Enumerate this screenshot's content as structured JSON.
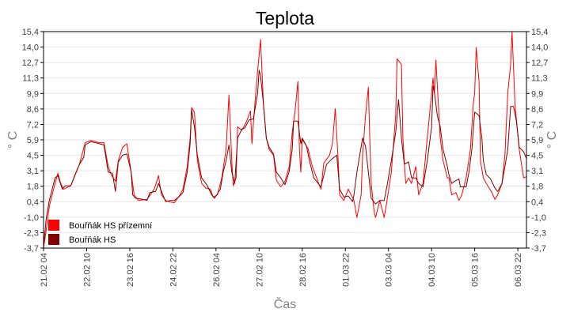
{
  "chart_data": {
    "type": "line",
    "title": "Teplota",
    "xlabel": "Čas",
    "ylabel": "° C",
    "x_unit": "hours since 21.02 04",
    "xlim": [
      0,
      336
    ],
    "ylim": [
      -3.7,
      15.4
    ],
    "yticks": [
      "15,4",
      "14,0",
      "12,7",
      "11,3",
      "9,9",
      "8,6",
      "7,2",
      "5,9",
      "4,5",
      "3,1",
      "1,8",
      "0,4",
      "-1,0",
      "-2,3",
      "-3,7"
    ],
    "xticks": [
      {
        "x": 0,
        "label": "21.02 04"
      },
      {
        "x": 30,
        "label": "22.02 10"
      },
      {
        "x": 60,
        "label": "23.02 16"
      },
      {
        "x": 90,
        "label": "24.02 22"
      },
      {
        "x": 120,
        "label": "26.02 04"
      },
      {
        "x": 150,
        "label": "27.02 10"
      },
      {
        "x": 180,
        "label": "28.02 16"
      },
      {
        "x": 210,
        "label": "01.03 22"
      },
      {
        "x": 240,
        "label": "03.03 04"
      },
      {
        "x": 270,
        "label": "04.03 10"
      },
      {
        "x": 300,
        "label": "05.03 16"
      },
      {
        "x": 330,
        "label": "06.03 22"
      }
    ],
    "grid": true,
    "legend_position": "bottom-left",
    "series": [
      {
        "name": "Bouřňák HS přízemní",
        "color": "#ff0000",
        "points": [
          [
            0,
            -3.7
          ],
          [
            2,
            -2.0
          ],
          [
            4,
            0.0
          ],
          [
            6,
            1.0
          ],
          [
            8,
            2.0
          ],
          [
            10,
            2.9
          ],
          [
            12,
            2.0
          ],
          [
            14,
            1.5
          ],
          [
            19,
            1.8
          ],
          [
            25,
            3.7
          ],
          [
            29,
            5.6
          ],
          [
            33,
            5.8
          ],
          [
            39,
            5.6
          ],
          [
            42,
            5.6
          ],
          [
            45,
            3.5
          ],
          [
            47,
            2.8
          ],
          [
            50,
            2.2
          ],
          [
            52,
            4.0
          ],
          [
            55,
            5.2
          ],
          [
            58,
            5.5
          ],
          [
            61,
            3.0
          ],
          [
            63,
            1.0
          ],
          [
            66,
            0.5
          ],
          [
            72,
            0.6
          ],
          [
            77,
            1.5
          ],
          [
            80,
            2.7
          ],
          [
            82,
            1.0
          ],
          [
            85,
            0.5
          ],
          [
            87,
            0.4
          ],
          [
            91,
            0.3
          ],
          [
            95,
            1.0
          ],
          [
            97,
            1.5
          ],
          [
            100,
            3.5
          ],
          [
            102,
            6.0
          ],
          [
            103,
            8.7
          ],
          [
            105,
            8.3
          ],
          [
            107,
            4.0
          ],
          [
            110,
            2.0
          ],
          [
            113,
            1.6
          ],
          [
            116,
            1.5
          ],
          [
            118,
            0.8
          ],
          [
            121,
            1.0
          ],
          [
            124,
            2.5
          ],
          [
            127,
            5.0
          ],
          [
            129,
            9.8
          ],
          [
            131,
            4.0
          ],
          [
            132,
            1.8
          ],
          [
            134,
            2.5
          ],
          [
            135,
            7.0
          ],
          [
            138,
            6.7
          ],
          [
            141,
            7.4
          ],
          [
            144,
            8.4
          ],
          [
            145,
            5.5
          ],
          [
            147,
            9.0
          ],
          [
            149,
            12.0
          ],
          [
            151,
            14.7
          ],
          [
            153,
            9.0
          ],
          [
            155,
            6.0
          ],
          [
            157,
            5.0
          ],
          [
            160,
            4.5
          ],
          [
            162,
            2.3
          ],
          [
            165,
            1.7
          ],
          [
            168,
            2.2
          ],
          [
            171,
            3.5
          ],
          [
            173,
            6.5
          ],
          [
            175,
            8.4
          ],
          [
            177,
            11.0
          ],
          [
            178,
            5.0
          ],
          [
            179,
            3.0
          ],
          [
            180,
            5.9
          ],
          [
            184,
            5.1
          ],
          [
            187,
            3.5
          ],
          [
            190,
            2.5
          ],
          [
            193,
            1.5
          ],
          [
            195,
            3.8
          ],
          [
            199,
            4.5
          ],
          [
            201,
            5.5
          ],
          [
            203,
            8.6
          ],
          [
            205,
            4.0
          ],
          [
            206,
            1.0
          ],
          [
            209,
            0.5
          ],
          [
            212,
            1.5
          ],
          [
            214,
            1.0
          ],
          [
            216,
            0.5
          ],
          [
            218,
            -1.0
          ],
          [
            221,
            1.0
          ],
          [
            222,
            4.5
          ],
          [
            224,
            8.0
          ],
          [
            226,
            10.5
          ],
          [
            227,
            6.0
          ],
          [
            228,
            2.0
          ],
          [
            230,
            -0.5
          ],
          [
            231,
            -1.0
          ],
          [
            234,
            0.5
          ],
          [
            237,
            -1.0
          ],
          [
            239,
            0.5
          ],
          [
            242,
            3.0
          ],
          [
            245,
            8.0
          ],
          [
            246,
            13.0
          ],
          [
            249,
            12.5
          ],
          [
            250,
            6.0
          ],
          [
            252,
            2.0
          ],
          [
            254,
            2.5
          ],
          [
            256,
            2.0
          ],
          [
            259,
            3.5
          ],
          [
            261,
            1.0
          ],
          [
            264,
            2.0
          ],
          [
            267,
            6.0
          ],
          [
            270,
            10.0
          ],
          [
            271,
            11.3
          ],
          [
            272,
            10.0
          ],
          [
            273,
            12.9
          ],
          [
            276,
            6.0
          ],
          [
            278,
            4.0
          ],
          [
            281,
            2.5
          ],
          [
            282,
            2.5
          ],
          [
            284,
            1.0
          ],
          [
            287,
            1.2
          ],
          [
            289,
            0.5
          ],
          [
            291,
            1.0
          ],
          [
            294,
            2.5
          ],
          [
            297,
            5.0
          ],
          [
            299,
            9.0
          ],
          [
            300,
            10.0
          ],
          [
            301,
            14.0
          ],
          [
            303,
            11.0
          ],
          [
            304,
            4.0
          ],
          [
            306,
            2.5
          ],
          [
            309,
            1.8
          ],
          [
            312,
            1.2
          ],
          [
            314,
            0.6
          ],
          [
            316,
            1.0
          ],
          [
            319,
            2.0
          ],
          [
            321,
            4.5
          ],
          [
            323,
            10.0
          ],
          [
            325,
            12.5
          ],
          [
            326,
            15.4
          ],
          [
            328,
            9.0
          ],
          [
            331,
            5.0
          ],
          [
            333,
            3.3
          ],
          [
            334,
            2.5
          ],
          [
            336,
            2.6
          ]
        ]
      },
      {
        "name": "Bouřňák HS",
        "color": "#800000",
        "points": [
          [
            0,
            -3.5
          ],
          [
            2,
            -1.0
          ],
          [
            4,
            0.5
          ],
          [
            6,
            1.5
          ],
          [
            8,
            2.5
          ],
          [
            10,
            2.7
          ],
          [
            13,
            1.5
          ],
          [
            15,
            1.8
          ],
          [
            19,
            1.8
          ],
          [
            22,
            2.8
          ],
          [
            25,
            3.7
          ],
          [
            28,
            4.3
          ],
          [
            29,
            5.4
          ],
          [
            33,
            5.7
          ],
          [
            39,
            5.5
          ],
          [
            42,
            5.4
          ],
          [
            45,
            3.0
          ],
          [
            48,
            2.9
          ],
          [
            50,
            1.3
          ],
          [
            52,
            3.9
          ],
          [
            55,
            4.5
          ],
          [
            58,
            4.6
          ],
          [
            61,
            3.0
          ],
          [
            62,
            1.0
          ],
          [
            64,
            0.7
          ],
          [
            69,
            0.6
          ],
          [
            72,
            0.5
          ],
          [
            74,
            1.2
          ],
          [
            78,
            1.3
          ],
          [
            80,
            2.0
          ],
          [
            83,
            1.0
          ],
          [
            85,
            0.4
          ],
          [
            88,
            0.5
          ],
          [
            91,
            0.5
          ],
          [
            94,
            0.8
          ],
          [
            97,
            1.2
          ],
          [
            100,
            3.0
          ],
          [
            102,
            5.5
          ],
          [
            103,
            8.5
          ],
          [
            105,
            7.0
          ],
          [
            107,
            4.5
          ],
          [
            110,
            2.5
          ],
          [
            114,
            1.8
          ],
          [
            117,
            1.0
          ],
          [
            119,
            0.7
          ],
          [
            123,
            1.5
          ],
          [
            125,
            3.0
          ],
          [
            127,
            4.0
          ],
          [
            129,
            5.4
          ],
          [
            131,
            3.0
          ],
          [
            133,
            2.0
          ],
          [
            135,
            6.0
          ],
          [
            138,
            6.8
          ],
          [
            140,
            6.9
          ],
          [
            143,
            7.6
          ],
          [
            146,
            7.7
          ],
          [
            149,
            10.0
          ],
          [
            150,
            12.0
          ],
          [
            151,
            11.5
          ],
          [
            153,
            9.0
          ],
          [
            155,
            6.0
          ],
          [
            157,
            5.2
          ],
          [
            160,
            4.6
          ],
          [
            162,
            3.0
          ],
          [
            165,
            2.5
          ],
          [
            168,
            1.9
          ],
          [
            171,
            3.1
          ],
          [
            173,
            5.0
          ],
          [
            174,
            7.5
          ],
          [
            177,
            7.5
          ],
          [
            179,
            5.5
          ],
          [
            180,
            6.0
          ],
          [
            183,
            5.3
          ],
          [
            185,
            4.0
          ],
          [
            188,
            2.5
          ],
          [
            193,
            1.7
          ],
          [
            197,
            3.7
          ],
          [
            201,
            4.2
          ],
          [
            204,
            4.5
          ],
          [
            205,
            3.0
          ],
          [
            206,
            1.5
          ],
          [
            209,
            0.8
          ],
          [
            212,
            0.9
          ],
          [
            215,
            0.4
          ],
          [
            216,
            1.0
          ],
          [
            218,
            3.0
          ],
          [
            222,
            6.0
          ],
          [
            224,
            5.3
          ],
          [
            226,
            3.0
          ],
          [
            228,
            0.7
          ],
          [
            231,
            0.2
          ],
          [
            234,
            0.5
          ],
          [
            237,
            0.5
          ],
          [
            239,
            1.8
          ],
          [
            242,
            4.0
          ],
          [
            245,
            6.5
          ],
          [
            247,
            9.4
          ],
          [
            249,
            6.0
          ],
          [
            251,
            3.7
          ],
          [
            254,
            3.9
          ],
          [
            256,
            2.5
          ],
          [
            259,
            2.5
          ],
          [
            261,
            2.0
          ],
          [
            264,
            1.7
          ],
          [
            267,
            4.0
          ],
          [
            270,
            7.0
          ],
          [
            271,
            10.6
          ],
          [
            272,
            10.0
          ],
          [
            274,
            8.0
          ],
          [
            276,
            7.0
          ],
          [
            278,
            5.0
          ],
          [
            281,
            3.5
          ],
          [
            282,
            2.8
          ],
          [
            284,
            2.0
          ],
          [
            286,
            2.2
          ],
          [
            289,
            2.4
          ],
          [
            290,
            1.7
          ],
          [
            294,
            1.7
          ],
          [
            296,
            3.0
          ],
          [
            298,
            5.0
          ],
          [
            300,
            8.3
          ],
          [
            303,
            8.0
          ],
          [
            305,
            6.0
          ],
          [
            306,
            4.0
          ],
          [
            308,
            2.8
          ],
          [
            311,
            2.4
          ],
          [
            314,
            1.6
          ],
          [
            316,
            1.3
          ],
          [
            319,
            2.0
          ],
          [
            321,
            3.5
          ],
          [
            323,
            5.0
          ],
          [
            325,
            8.8
          ],
          [
            327,
            8.8
          ],
          [
            329,
            7.5
          ],
          [
            331,
            5.2
          ],
          [
            334,
            4.8
          ],
          [
            336,
            4.2
          ]
        ]
      }
    ]
  }
}
